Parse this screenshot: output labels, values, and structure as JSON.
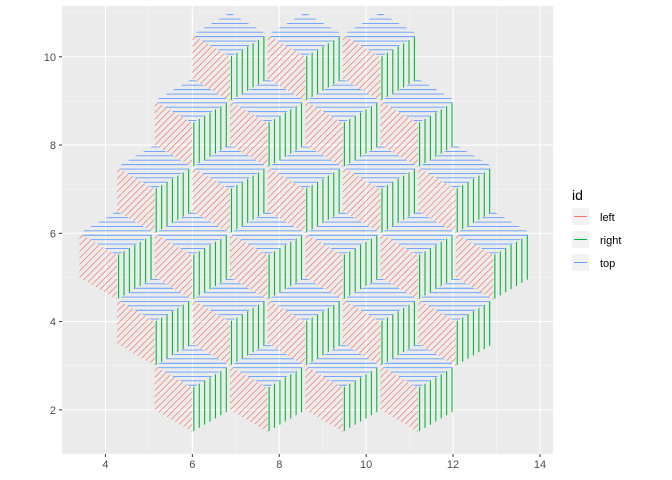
{
  "chart_data": {
    "type": "hatched-tile-pattern",
    "title": "",
    "xlabel": "",
    "ylabel": "",
    "xlim": [
      3.0,
      14.3
    ],
    "ylim": [
      1.0,
      11.15
    ],
    "x_ticks": [
      4,
      6,
      8,
      10,
      12,
      14
    ],
    "y_ticks": [
      2,
      4,
      6,
      8,
      10
    ],
    "x_tick_labels": [
      "4",
      "6",
      "8",
      "10",
      "12",
      "14"
    ],
    "y_tick_labels": [
      "2",
      "4",
      "6",
      "8",
      "10"
    ],
    "grid": true,
    "legend": {
      "title": "id",
      "position": "right",
      "entries": [
        {
          "label": "left",
          "color": "#F8766D"
        },
        {
          "label": "right",
          "color": "#00BA38"
        },
        {
          "label": "top",
          "color": "#619CFF"
        }
      ]
    },
    "tile_geometry": {
      "face_width": 0.866,
      "face_height": 1.0,
      "top_rise": 0.5,
      "hatch": {
        "left": "diagonal",
        "right": "vertical",
        "top": "horizontal"
      }
    },
    "cube_centers": [
      [
        6.866,
        10.0
      ],
      [
        8.598,
        10.0
      ],
      [
        10.33,
        10.0
      ],
      [
        6.0,
        8.5
      ],
      [
        7.732,
        8.5
      ],
      [
        9.464,
        8.5
      ],
      [
        11.196,
        8.5
      ],
      [
        5.134,
        7.0
      ],
      [
        6.866,
        7.0
      ],
      [
        8.598,
        7.0
      ],
      [
        10.33,
        7.0
      ],
      [
        12.062,
        7.0
      ],
      [
        4.268,
        5.5
      ],
      [
        6.0,
        5.5
      ],
      [
        7.732,
        5.5
      ],
      [
        9.464,
        5.5
      ],
      [
        11.196,
        5.5
      ],
      [
        12.928,
        5.5
      ],
      [
        5.134,
        4.0
      ],
      [
        6.866,
        4.0
      ],
      [
        8.598,
        4.0
      ],
      [
        10.33,
        4.0
      ],
      [
        12.062,
        4.0
      ],
      [
        6.0,
        2.5
      ],
      [
        7.732,
        2.5
      ],
      [
        9.464,
        2.5
      ],
      [
        11.196,
        2.5
      ]
    ]
  }
}
